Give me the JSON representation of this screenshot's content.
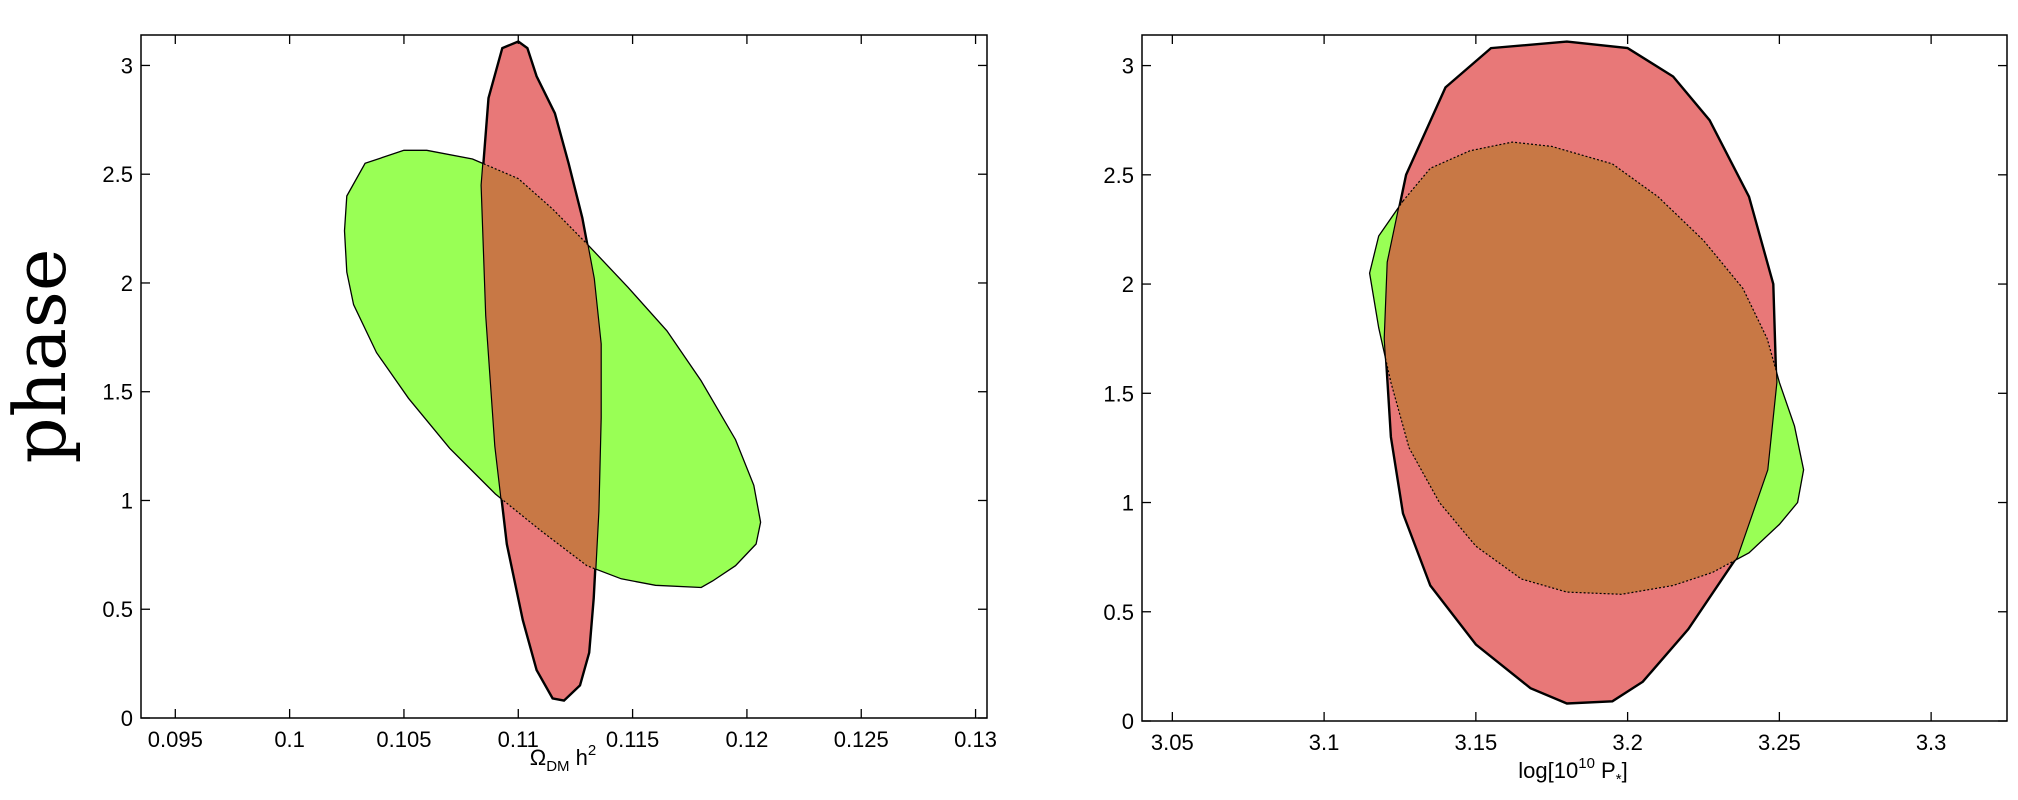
{
  "figure": {
    "shared_ylabel": "phase",
    "green_color": "#99ff55",
    "red_color": "#e87878",
    "overlap_color": "#c87845"
  },
  "chart_data": [
    {
      "type": "area",
      "xlabel": {
        "main": "Ω",
        "sub": "DM",
        "mid": " h",
        "sup": "2"
      },
      "ylabel": "phase",
      "xlim": [
        0.0935,
        0.1305
      ],
      "ylim": [
        0,
        3.14
      ],
      "xticks": [
        "0.095",
        "0.1",
        "0.105",
        "0.11",
        "0.115",
        "0.12",
        "0.125",
        "0.13"
      ],
      "xtick_values": [
        0.095,
        0.1,
        0.105,
        0.11,
        0.115,
        0.12,
        0.125,
        0.13
      ],
      "yticks": [
        "0",
        "0.5",
        "1",
        "1.5",
        "2",
        "2.5",
        "3"
      ],
      "ytick_values": [
        0,
        0.5,
        1,
        1.5,
        2,
        2.5,
        3
      ],
      "grid": false,
      "series": [
        {
          "color": "#99ff55",
          "points": [
            [
              0.1025,
              2.4
            ],
            [
              0.1033,
              2.55
            ],
            [
              0.105,
              2.61
            ],
            [
              0.106,
              2.61
            ],
            [
              0.108,
              2.57
            ],
            [
              0.11,
              2.48
            ],
            [
              0.1115,
              2.34
            ],
            [
              0.113,
              2.18
            ],
            [
              0.1148,
              1.98
            ],
            [
              0.1165,
              1.78
            ],
            [
              0.118,
              1.55
            ],
            [
              0.1195,
              1.28
            ],
            [
              0.1203,
              1.07
            ],
            [
              0.1206,
              0.9
            ],
            [
              0.1204,
              0.8
            ],
            [
              0.1195,
              0.7
            ],
            [
              0.1185,
              0.63
            ],
            [
              0.118,
              0.6
            ],
            [
              0.116,
              0.61
            ],
            [
              0.1145,
              0.64
            ],
            [
              0.113,
              0.7
            ],
            [
              0.111,
              0.86
            ],
            [
              0.109,
              1.03
            ],
            [
              0.107,
              1.24
            ],
            [
              0.1052,
              1.47
            ],
            [
              0.1038,
              1.68
            ],
            [
              0.1028,
              1.9
            ],
            [
              0.1025,
              2.05
            ],
            [
              0.1024,
              2.24
            ]
          ]
        },
        {
          "color": "#e87878",
          "points": [
            [
              0.1093,
              3.08
            ],
            [
              0.11,
              3.11
            ],
            [
              0.1104,
              3.08
            ],
            [
              0.1108,
              2.95
            ],
            [
              0.1116,
              2.78
            ],
            [
              0.1122,
              2.55
            ],
            [
              0.1128,
              2.3
            ],
            [
              0.1133,
              2.02
            ],
            [
              0.1136,
              1.72
            ],
            [
              0.1136,
              1.38
            ],
            [
              0.1135,
              0.95
            ],
            [
              0.1133,
              0.55
            ],
            [
              0.1131,
              0.3
            ],
            [
              0.1127,
              0.15
            ],
            [
              0.112,
              0.08
            ],
            [
              0.1115,
              0.09
            ],
            [
              0.1108,
              0.22
            ],
            [
              0.1102,
              0.45
            ],
            [
              0.1095,
              0.8
            ],
            [
              0.109,
              1.25
            ],
            [
              0.1086,
              1.85
            ],
            [
              0.1084,
              2.45
            ],
            [
              0.1087,
              2.85
            ]
          ]
        }
      ]
    },
    {
      "type": "area",
      "xlabel": {
        "pre": "log[10",
        "sup": "10",
        "mid": " P",
        "sub": "*",
        "post": "]"
      },
      "xlim": [
        3.04,
        3.325
      ],
      "ylim": [
        0,
        3.14
      ],
      "xticks": [
        "3.05",
        "3.1",
        "3.15",
        "3.2",
        "3.25",
        "3.3"
      ],
      "xtick_values": [
        3.05,
        3.1,
        3.15,
        3.2,
        3.25,
        3.3
      ],
      "yticks": [
        "0",
        "0.5",
        "1",
        "1.5",
        "2",
        "2.5",
        "3"
      ],
      "ytick_values": [
        0,
        0.5,
        1,
        1.5,
        2,
        2.5,
        3
      ],
      "grid": false,
      "series": [
        {
          "color": "#99ff55",
          "points": [
            [
              3.126,
              2.38
            ],
            [
              3.135,
              2.53
            ],
            [
              3.148,
              2.61
            ],
            [
              3.162,
              2.65
            ],
            [
              3.175,
              2.63
            ],
            [
              3.195,
              2.55
            ],
            [
              3.21,
              2.4
            ],
            [
              3.225,
              2.2
            ],
            [
              3.238,
              1.98
            ],
            [
              3.246,
              1.75
            ],
            [
              3.25,
              1.55
            ],
            [
              3.255,
              1.35
            ],
            [
              3.258,
              1.15
            ],
            [
              3.256,
              1.0
            ],
            [
              3.25,
              0.9
            ],
            [
              3.24,
              0.77
            ],
            [
              3.228,
              0.68
            ],
            [
              3.215,
              0.62
            ],
            [
              3.198,
              0.58
            ],
            [
              3.18,
              0.59
            ],
            [
              3.165,
              0.65
            ],
            [
              3.15,
              0.8
            ],
            [
              3.138,
              1.0
            ],
            [
              3.128,
              1.25
            ],
            [
              3.122,
              1.55
            ],
            [
              3.118,
              1.8
            ],
            [
              3.115,
              2.05
            ],
            [
              3.118,
              2.22
            ]
          ]
        },
        {
          "color": "#e87878",
          "points": [
            [
              3.14,
              2.9
            ],
            [
              3.155,
              3.08
            ],
            [
              3.18,
              3.11
            ],
            [
              3.2,
              3.08
            ],
            [
              3.215,
              2.95
            ],
            [
              3.227,
              2.75
            ],
            [
              3.24,
              2.4
            ],
            [
              3.248,
              2.0
            ],
            [
              3.249,
              1.55
            ],
            [
              3.246,
              1.15
            ],
            [
              3.236,
              0.75
            ],
            [
              3.22,
              0.42
            ],
            [
              3.205,
              0.18
            ],
            [
              3.195,
              0.09
            ],
            [
              3.18,
              0.08
            ],
            [
              3.168,
              0.15
            ],
            [
              3.15,
              0.35
            ],
            [
              3.135,
              0.62
            ],
            [
              3.126,
              0.95
            ],
            [
              3.122,
              1.3
            ],
            [
              3.12,
              1.75
            ],
            [
              3.121,
              2.1
            ],
            [
              3.127,
              2.5
            ]
          ]
        }
      ]
    }
  ]
}
